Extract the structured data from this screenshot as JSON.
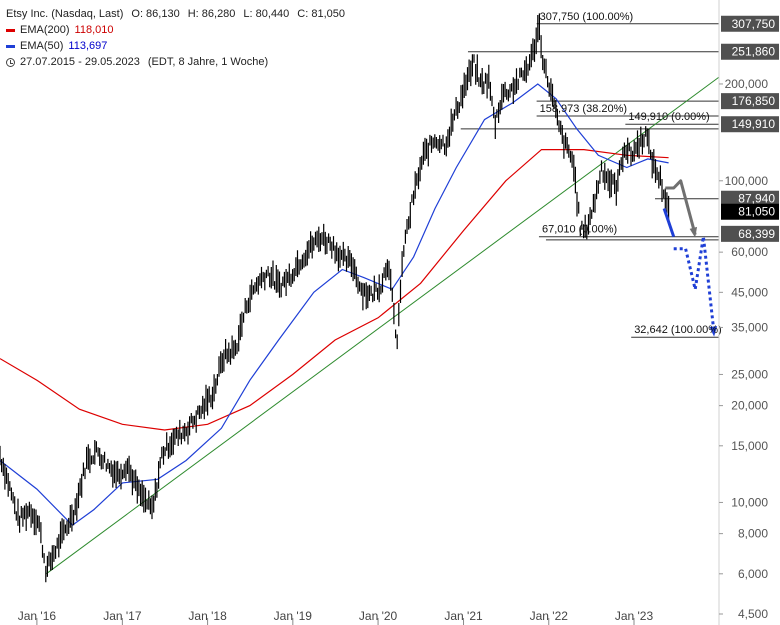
{
  "legend": {
    "title": "Etsy Inc. (Nasdaq, Last)",
    "ohlc": {
      "open": "O: 86,130",
      "high": "H: 86,280",
      "low": "L: 80,440",
      "close": "C: 81,050"
    },
    "ema200": {
      "label": "EMA(200)",
      "value": "118,010",
      "color": "#dd0000"
    },
    "ema50": {
      "label": "EMA(50)",
      "value": "113,697",
      "color": "#1f3fd6"
    },
    "range": "27.07.2015 - 29.05.2023",
    "period": "(EDT, 8 Jahre, 1 Woche)"
  },
  "chart_data": {
    "type": "line",
    "scale": "log",
    "ylim": [
      4500,
      330000
    ],
    "xlim": [
      "2015-07-27",
      "2023-12-31"
    ],
    "y_ticks": [
      {
        "value": 200000,
        "label": "200,000"
      },
      {
        "value": 100000,
        "label": "100,000"
      },
      {
        "value": 60000,
        "label": "60,000"
      },
      {
        "value": 45000,
        "label": "45,000"
      },
      {
        "value": 35000,
        "label": "35,000"
      },
      {
        "value": 25000,
        "label": "25,000"
      },
      {
        "value": 20000,
        "label": "20,000"
      },
      {
        "value": 15000,
        "label": "15,000"
      },
      {
        "value": 10000,
        "label": "10,000"
      },
      {
        "value": 8000,
        "label": "8,000"
      },
      {
        "value": 6000,
        "label": "6,000"
      },
      {
        "value": 4500,
        "label": "4,500"
      }
    ],
    "x_ticks": [
      {
        "date": "2016-01-01",
        "label": "Jan '16"
      },
      {
        "date": "2017-01-01",
        "label": "Jan '17"
      },
      {
        "date": "2018-01-01",
        "label": "Jan '18"
      },
      {
        "date": "2019-01-01",
        "label": "Jan '19"
      },
      {
        "date": "2020-01-01",
        "label": "Jan '20"
      },
      {
        "date": "2021-01-01",
        "label": "Jan '21"
      },
      {
        "date": "2022-01-01",
        "label": "Jan '22"
      },
      {
        "date": "2023-01-01",
        "label": "Jan '23"
      }
    ],
    "price_labels": [
      {
        "value": 307750,
        "label": "307,750",
        "bg": "#505050"
      },
      {
        "value": 251860,
        "label": "251,860",
        "bg": "#505050"
      },
      {
        "value": 176850,
        "label": "176,850",
        "bg": "#505050"
      },
      {
        "value": 149910,
        "label": "149,910",
        "bg": "#505050"
      },
      {
        "value": 87940,
        "label": "87,940",
        "bg": "#505050"
      },
      {
        "value": 81050,
        "label": "81,050",
        "bg": "#000000"
      },
      {
        "value": 68399,
        "label": "68,399",
        "bg": "#505050"
      }
    ],
    "levels": [
      {
        "value": 307750,
        "label": "307,750 (100.00%)",
        "from": "2021-11-10"
      },
      {
        "value": 251860,
        "label": "",
        "from": "2021-01-20"
      },
      {
        "value": 176850,
        "label": "",
        "from": "2021-11-10"
      },
      {
        "value": 158973,
        "label": "158,973 (38.20%)",
        "from": "2021-11-10"
      },
      {
        "value": 149910,
        "label": "149,910 (0.00%)",
        "from": "2022-11-25"
      },
      {
        "value": 145000,
        "label": "",
        "from": "2020-12-20"
      },
      {
        "value": 87940,
        "label": "",
        "from": "2023-04-01"
      },
      {
        "value": 67010,
        "label": "67,010 (0.00%)",
        "from": "2021-11-20"
      },
      {
        "value": 65500,
        "label": "",
        "from": "2021-12-20"
      },
      {
        "value": 32642,
        "label": "32,642 (100.00%)",
        "from": "2022-12-20"
      }
    ],
    "series": [
      {
        "name": "Etsy",
        "color": "#000000",
        "style": "weekly-bars",
        "points": [
          [
            "2015-07-27",
            14000
          ],
          [
            "2015-09-01",
            11500
          ],
          [
            "2015-10-15",
            8800
          ],
          [
            "2015-12-01",
            9500
          ],
          [
            "2016-01-10",
            8600
          ],
          [
            "2016-02-10",
            6100
          ],
          [
            "2016-03-15",
            7000
          ],
          [
            "2016-05-01",
            8200
          ],
          [
            "2016-06-15",
            9700
          ],
          [
            "2016-08-01",
            13500
          ],
          [
            "2016-09-15",
            14500
          ],
          [
            "2016-11-01",
            13000
          ],
          [
            "2016-12-15",
            12200
          ],
          [
            "2017-01-20",
            13200
          ],
          [
            "2017-03-10",
            10800
          ],
          [
            "2017-05-10",
            9400
          ],
          [
            "2017-06-20",
            14200
          ],
          [
            "2017-08-01",
            15600
          ],
          [
            "2017-10-01",
            16800
          ],
          [
            "2017-12-01",
            19200
          ],
          [
            "2018-01-25",
            22000
          ],
          [
            "2018-03-10",
            28500
          ],
          [
            "2018-05-01",
            30000
          ],
          [
            "2018-06-20",
            42000
          ],
          [
            "2018-08-01",
            48000
          ],
          [
            "2018-09-15",
            52000
          ],
          [
            "2018-11-01",
            47000
          ],
          [
            "2018-12-15",
            50000
          ],
          [
            "2019-01-20",
            55000
          ],
          [
            "2019-03-15",
            62000
          ],
          [
            "2019-05-01",
            67000
          ],
          [
            "2019-06-15",
            64000
          ],
          [
            "2019-08-01",
            57000
          ],
          [
            "2019-09-15",
            55000
          ],
          [
            "2019-10-20",
            46000
          ],
          [
            "2019-12-01",
            44000
          ],
          [
            "2020-01-15",
            48000
          ],
          [
            "2020-02-15",
            57000
          ],
          [
            "2020-03-20",
            30500
          ],
          [
            "2020-04-20",
            62000
          ],
          [
            "2020-06-01",
            90000
          ],
          [
            "2020-07-15",
            120000
          ],
          [
            "2020-09-01",
            135000
          ],
          [
            "2020-10-15",
            130000
          ],
          [
            "2020-12-01",
            165000
          ],
          [
            "2021-01-10",
            200000
          ],
          [
            "2021-02-15",
            230000
          ],
          [
            "2021-03-15",
            200000
          ],
          [
            "2021-04-20",
            205000
          ],
          [
            "2021-05-15",
            150000
          ],
          [
            "2021-06-15",
            185000
          ],
          [
            "2021-08-01",
            195000
          ],
          [
            "2021-09-15",
            215000
          ],
          [
            "2021-10-20",
            240000
          ],
          [
            "2021-11-20",
            305000
          ],
          [
            "2021-12-10",
            230000
          ],
          [
            "2022-01-10",
            190000
          ],
          [
            "2022-02-10",
            150000
          ],
          [
            "2022-03-10",
            130000
          ],
          [
            "2022-04-15",
            115000
          ],
          [
            "2022-05-15",
            72000
          ],
          [
            "2022-06-05",
            69000
          ],
          [
            "2022-07-15",
            85000
          ],
          [
            "2022-08-15",
            110000
          ],
          [
            "2022-09-15",
            100000
          ],
          [
            "2022-10-20",
            95000
          ],
          [
            "2022-11-20",
            128000
          ],
          [
            "2022-12-20",
            120000
          ],
          [
            "2023-01-20",
            130000
          ],
          [
            "2023-02-20",
            140000
          ],
          [
            "2023-03-25",
            112000
          ],
          [
            "2023-04-25",
            100000
          ],
          [
            "2023-05-29",
            81050
          ]
        ]
      },
      {
        "name": "EMA(50)",
        "color": "#1f3fd6",
        "points": [
          [
            "2015-07-27",
            13500
          ],
          [
            "2016-01-01",
            11000
          ],
          [
            "2016-06-01",
            8500
          ],
          [
            "2016-09-01",
            9500
          ],
          [
            "2017-01-01",
            11500
          ],
          [
            "2017-06-01",
            11800
          ],
          [
            "2017-10-01",
            13500
          ],
          [
            "2018-03-01",
            17000
          ],
          [
            "2018-07-01",
            24000
          ],
          [
            "2018-11-01",
            32000
          ],
          [
            "2019-04-01",
            45000
          ],
          [
            "2019-08-01",
            53000
          ],
          [
            "2019-11-01",
            50000
          ],
          [
            "2020-03-01",
            46000
          ],
          [
            "2020-06-01",
            58000
          ],
          [
            "2020-09-01",
            82000
          ],
          [
            "2020-12-01",
            110000
          ],
          [
            "2021-04-01",
            155000
          ],
          [
            "2021-08-01",
            175000
          ],
          [
            "2021-11-15",
            200000
          ],
          [
            "2022-02-01",
            180000
          ],
          [
            "2022-05-01",
            145000
          ],
          [
            "2022-08-01",
            120000
          ],
          [
            "2022-12-01",
            110000
          ],
          [
            "2023-03-01",
            117000
          ],
          [
            "2023-05-29",
            113697
          ]
        ]
      },
      {
        "name": "EMA(200)",
        "color": "#dd0000",
        "points": [
          [
            "2015-07-27",
            28000
          ],
          [
            "2016-01-01",
            24000
          ],
          [
            "2016-07-01",
            19500
          ],
          [
            "2017-01-01",
            17500
          ],
          [
            "2017-07-01",
            16800
          ],
          [
            "2018-01-01",
            17500
          ],
          [
            "2018-07-01",
            20000
          ],
          [
            "2019-01-01",
            25000
          ],
          [
            "2019-07-01",
            32000
          ],
          [
            "2020-01-01",
            37500
          ],
          [
            "2020-07-01",
            48000
          ],
          [
            "2021-01-01",
            70000
          ],
          [
            "2021-07-01",
            100000
          ],
          [
            "2021-12-01",
            125000
          ],
          [
            "2022-06-01",
            125000
          ],
          [
            "2022-12-01",
            120000
          ],
          [
            "2023-05-29",
            118010
          ]
        ]
      }
    ],
    "trendline": {
      "color": "#2e8b2e",
      "from": [
        "2016-02-10",
        6000
      ],
      "to": [
        "2023-12-31",
        210000
      ]
    },
    "projections": [
      {
        "color": "#707070",
        "style": "solid",
        "arrow": true,
        "points": [
          [
            "2023-05-15",
            95000
          ],
          [
            "2023-06-20",
            95000
          ],
          [
            "2023-07-20",
            100000
          ],
          [
            "2023-09-20",
            68000
          ]
        ]
      },
      {
        "color": "#1f3fd6",
        "style": "solid",
        "arrow": false,
        "points": [
          [
            "2023-05-10",
            82000
          ],
          [
            "2023-06-20",
            67000
          ]
        ]
      },
      {
        "color": "#1f3fd6",
        "style": "dotted",
        "arrow": true,
        "points": [
          [
            "2023-06-20",
            61500
          ],
          [
            "2023-08-10",
            61500
          ],
          [
            "2023-09-20",
            46000
          ],
          [
            "2023-10-25",
            67000
          ],
          [
            "2023-12-10",
            33500
          ]
        ]
      }
    ]
  }
}
